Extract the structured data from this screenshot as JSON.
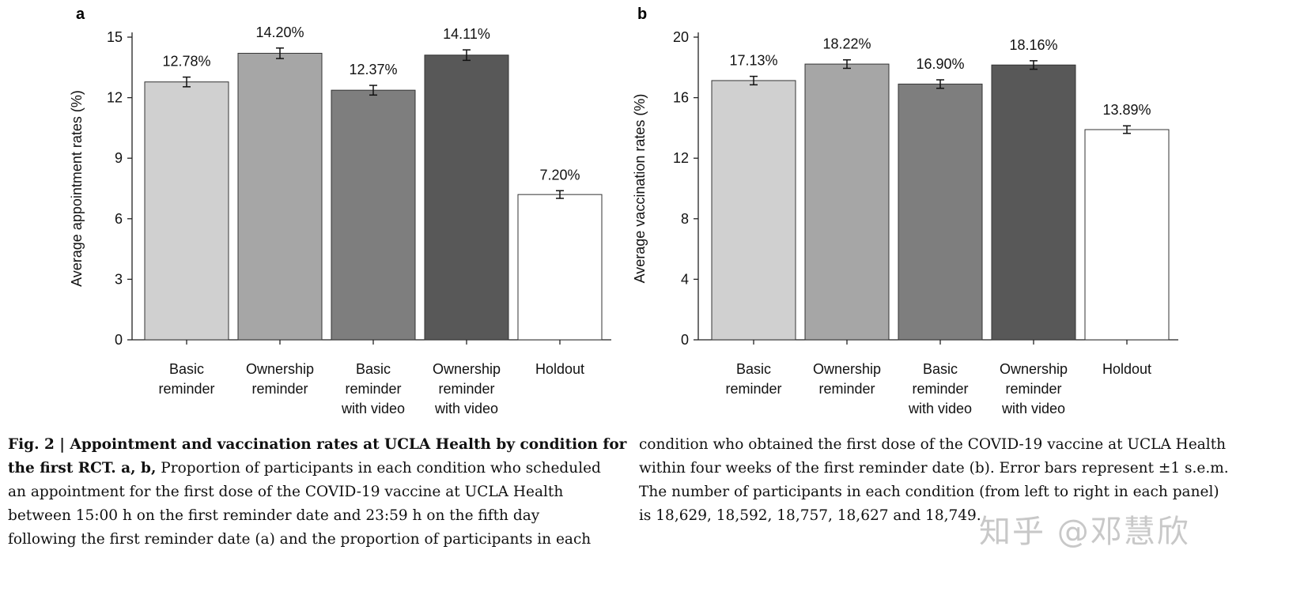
{
  "chart_data": [
    {
      "type": "bar",
      "panel_label": "a",
      "ylabel": "Average appointment rates (%)",
      "ylim": [
        0,
        15
      ],
      "yticks": [
        0,
        3,
        6,
        9,
        12,
        15
      ],
      "categories": [
        [
          "Basic",
          "reminder"
        ],
        [
          "Ownership",
          "reminder"
        ],
        [
          "Basic",
          "reminder",
          "with video"
        ],
        [
          "Ownership",
          "reminder",
          "with video"
        ],
        [
          "Holdout"
        ]
      ],
      "values": [
        12.78,
        14.2,
        12.37,
        14.11,
        7.2
      ],
      "value_labels": [
        "12.78%",
        "14.20%",
        "12.37%",
        "14.11%",
        "7.20%"
      ],
      "error": [
        0.24,
        0.26,
        0.24,
        0.26,
        0.19
      ],
      "colors": [
        "#d0d0d0",
        "#a6a6a6",
        "#7e7e7e",
        "#585858",
        "#ffffff"
      ]
    },
    {
      "type": "bar",
      "panel_label": "b",
      "ylabel": "Average vaccination rates (%)",
      "ylim": [
        0,
        20
      ],
      "yticks": [
        0,
        4,
        8,
        12,
        16,
        20
      ],
      "categories": [
        [
          "Basic",
          "reminder"
        ],
        [
          "Ownership",
          "reminder"
        ],
        [
          "Basic",
          "reminder",
          "with video"
        ],
        [
          "Ownership",
          "reminder",
          "with video"
        ],
        [
          "Holdout"
        ]
      ],
      "values": [
        17.13,
        18.22,
        16.9,
        18.16,
        13.89
      ],
      "value_labels": [
        "17.13%",
        "18.22%",
        "16.90%",
        "18.16%",
        "13.89%"
      ],
      "error": [
        0.28,
        0.28,
        0.28,
        0.28,
        0.25
      ],
      "colors": [
        "#d0d0d0",
        "#a6a6a6",
        "#7e7e7e",
        "#585858",
        "#ffffff"
      ]
    }
  ],
  "caption": {
    "left": {
      "line1_bold": "Fig. 2 | Appointment and vaccination rates at UCLA Health by condition for",
      "line2_bold": "the first RCT. a, b,",
      "line2_rest": " Proportion of participants in each condition who scheduled",
      "line3": "an appointment for the first dose of the COVID-19 vaccine at UCLA Health",
      "line4": "between 15:00 h on the first reminder date and 23:59 h on the fifth day",
      "line5": "following the first reminder date (a) and the proportion of participants in each"
    },
    "right": {
      "line1": "condition who obtained the first dose of the COVID-19 vaccine at UCLA Health",
      "line2": "within four weeks of the first reminder date (b). Error bars represent ±1 s.e.m.",
      "line3": "The number of participants in each condition (from left to right in each panel)",
      "line4": "is 18,629, 18,592, 18,757, 18,627 and 18,749."
    }
  },
  "watermark": "知乎 @邓慧欣"
}
